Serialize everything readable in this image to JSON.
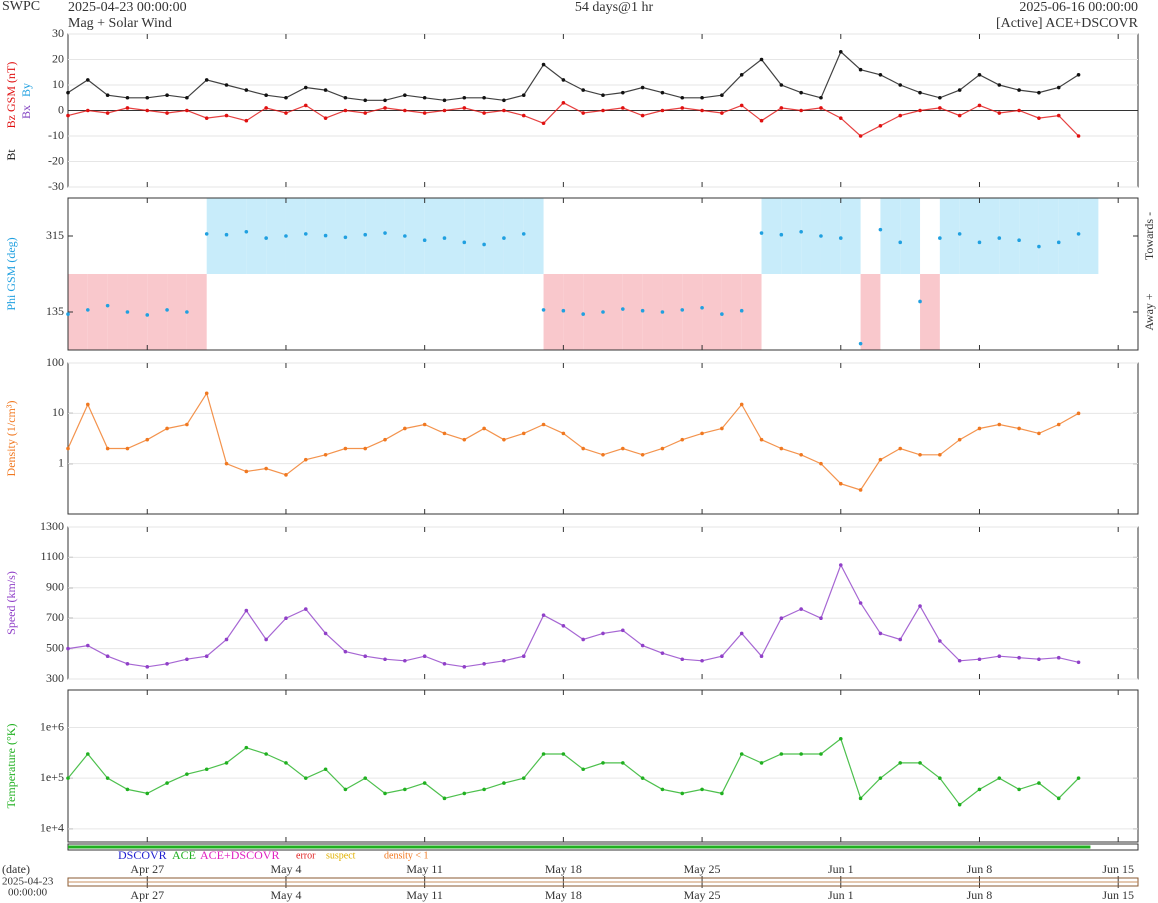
{
  "chart_data": [
    {
      "type": "line",
      "source": "SWPC",
      "start": "2025-04-23 00:00:00",
      "title": "Mag + Solar Wind",
      "span": "54 days@1 hr",
      "end": "2025-06-16 00:00:00",
      "status": "[Active] ACE+DSCOVR",
      "y_label_extra": [
        {
          "name": "Bx",
          "color": "#8040c0"
        },
        {
          "name": "By",
          "color": "#20a0e0"
        }
      ],
      "x": [
        "2025-04-23",
        "2025-04-24",
        "2025-04-25",
        "2025-04-26",
        "2025-04-27",
        "2025-04-28",
        "2025-04-29",
        "2025-04-30",
        "2025-05-01",
        "2025-05-02",
        "2025-05-03",
        "2025-05-04",
        "2025-05-05",
        "2025-05-06",
        "2025-05-07",
        "2025-05-08",
        "2025-05-09",
        "2025-05-10",
        "2025-05-11",
        "2025-05-12",
        "2025-05-13",
        "2025-05-14",
        "2025-05-15",
        "2025-05-16",
        "2025-05-17",
        "2025-05-18",
        "2025-05-19",
        "2025-05-20",
        "2025-05-21",
        "2025-05-22",
        "2025-05-23",
        "2025-05-24",
        "2025-05-25",
        "2025-05-26",
        "2025-05-27",
        "2025-05-28",
        "2025-05-29",
        "2025-05-30",
        "2025-05-31",
        "2025-06-01",
        "2025-06-02",
        "2025-06-03",
        "2025-06-04",
        "2025-06-05",
        "2025-06-06",
        "2025-06-07",
        "2025-06-08",
        "2025-06-09",
        "2025-06-10",
        "2025-06-11",
        "2025-06-12",
        "2025-06-13"
      ],
      "xlim": [
        "2025-04-23",
        "2025-06-16"
      ],
      "xticks": [
        {
          "value": "2025-04-27",
          "label": "Apr 27"
        },
        {
          "value": "2025-05-04",
          "label": "May 4"
        },
        {
          "value": "2025-05-11",
          "label": "May 11"
        },
        {
          "value": "2025-05-18",
          "label": "May 18"
        },
        {
          "value": "2025-05-25",
          "label": "May 25"
        },
        {
          "value": "2025-06-01",
          "label": "Jun 1"
        },
        {
          "value": "2025-06-08",
          "label": "Jun 8"
        },
        {
          "value": "2025-06-15",
          "label": "Jun 15"
        }
      ],
      "ylim": [
        -30,
        30
      ],
      "yticks": [
        -30,
        -20,
        -10,
        0,
        10,
        20,
        30
      ],
      "grid": true,
      "series": [
        {
          "name": "Bt",
          "color": "#111111",
          "values": [
            7,
            12,
            6,
            5,
            5,
            6,
            5,
            12,
            10,
            8,
            6,
            5,
            9,
            8,
            5,
            4,
            4,
            6,
            5,
            4,
            5,
            5,
            4,
            6,
            18,
            12,
            8,
            6,
            7,
            9,
            7,
            5,
            5,
            6,
            14,
            20,
            10,
            7,
            5,
            23,
            16,
            14,
            10,
            7,
            5,
            8,
            14,
            10,
            8,
            7,
            9,
            14
          ]
        },
        {
          "name": "Bz GSM (nT)",
          "color": "#e01010",
          "values": [
            -2,
            0,
            -1,
            1,
            0,
            -1,
            0,
            -3,
            -2,
            -4,
            1,
            -1,
            2,
            -3,
            0,
            -1,
            1,
            0,
            -1,
            0,
            1,
            -1,
            0,
            -2,
            -5,
            3,
            -1,
            0,
            1,
            -2,
            0,
            1,
            0,
            -1,
            2,
            -4,
            1,
            0,
            1,
            -3,
            -10,
            -6,
            -2,
            0,
            1,
            -2,
            2,
            -1,
            0,
            -3,
            -2,
            -10
          ]
        }
      ]
    },
    {
      "type": "scatter",
      "y_label": "Phi GSM (deg)",
      "sector_shading": true,
      "annotations": [
        "Towards -",
        "Away +"
      ],
      "x": [
        "2025-04-23",
        "2025-04-24",
        "2025-04-25",
        "2025-04-26",
        "2025-04-27",
        "2025-04-28",
        "2025-04-29",
        "2025-04-30",
        "2025-05-01",
        "2025-05-02",
        "2025-05-03",
        "2025-05-04",
        "2025-05-05",
        "2025-05-06",
        "2025-05-07",
        "2025-05-08",
        "2025-05-09",
        "2025-05-10",
        "2025-05-11",
        "2025-05-12",
        "2025-05-13",
        "2025-05-14",
        "2025-05-15",
        "2025-05-16",
        "2025-05-17",
        "2025-05-18",
        "2025-05-19",
        "2025-05-20",
        "2025-05-21",
        "2025-05-22",
        "2025-05-23",
        "2025-05-24",
        "2025-05-25",
        "2025-05-26",
        "2025-05-27",
        "2025-05-28",
        "2025-05-29",
        "2025-05-30",
        "2025-05-31",
        "2025-06-01",
        "2025-06-02",
        "2025-06-03",
        "2025-06-04",
        "2025-06-05",
        "2025-06-06",
        "2025-06-07",
        "2025-06-08",
        "2025-06-09",
        "2025-06-10",
        "2025-06-11",
        "2025-06-12",
        "2025-06-13"
      ],
      "xlim": [
        "2025-04-23",
        "2025-06-16"
      ],
      "xticks": [
        {
          "value": "2025-04-27",
          "label": "Apr 27"
        },
        {
          "value": "2025-05-04",
          "label": "May 4"
        },
        {
          "value": "2025-05-11",
          "label": "May 11"
        },
        {
          "value": "2025-05-18",
          "label": "May 18"
        },
        {
          "value": "2025-05-25",
          "label": "May 25"
        },
        {
          "value": "2025-06-01",
          "label": "Jun 1"
        },
        {
          "value": "2025-06-08",
          "label": "Jun 8"
        },
        {
          "value": "2025-06-15",
          "label": "Jun 15"
        }
      ],
      "ylim": [
        45,
        405
      ],
      "yticks": [
        135,
        315
      ],
      "grid": false,
      "series": [
        {
          "name": "Phi GSM (deg)",
          "color": "#20a0e0",
          "values": [
            130,
            140,
            150,
            135,
            128,
            140,
            135,
            320,
            318,
            325,
            310,
            315,
            320,
            316,
            312,
            318,
            322,
            315,
            305,
            310,
            300,
            295,
            310,
            320,
            140,
            138,
            130,
            135,
            142,
            138,
            135,
            140,
            145,
            130,
            138,
            322,
            318,
            325,
            315,
            310,
            60,
            330,
            300,
            160,
            310,
            320,
            300,
            310,
            305,
            290,
            300,
            320
          ]
        }
      ]
    },
    {
      "type": "line",
      "log_scale": true,
      "x": [
        "2025-04-23",
        "2025-04-24",
        "2025-04-25",
        "2025-04-26",
        "2025-04-27",
        "2025-04-28",
        "2025-04-29",
        "2025-04-30",
        "2025-05-01",
        "2025-05-02",
        "2025-05-03",
        "2025-05-04",
        "2025-05-05",
        "2025-05-06",
        "2025-05-07",
        "2025-05-08",
        "2025-05-09",
        "2025-05-10",
        "2025-05-11",
        "2025-05-12",
        "2025-05-13",
        "2025-05-14",
        "2025-05-15",
        "2025-05-16",
        "2025-05-17",
        "2025-05-18",
        "2025-05-19",
        "2025-05-20",
        "2025-05-21",
        "2025-05-22",
        "2025-05-23",
        "2025-05-24",
        "2025-05-25",
        "2025-05-26",
        "2025-05-27",
        "2025-05-28",
        "2025-05-29",
        "2025-05-30",
        "2025-05-31",
        "2025-06-01",
        "2025-06-02",
        "2025-06-03",
        "2025-06-04",
        "2025-06-05",
        "2025-06-06",
        "2025-06-07",
        "2025-06-08",
        "2025-06-09",
        "2025-06-10",
        "2025-06-11",
        "2025-06-12",
        "2025-06-13"
      ],
      "xlim": [
        "2025-04-23",
        "2025-06-16"
      ],
      "xticks": [
        {
          "value": "2025-04-27",
          "label": "Apr 27"
        },
        {
          "value": "2025-05-04",
          "label": "May 4"
        },
        {
          "value": "2025-05-11",
          "label": "May 11"
        },
        {
          "value": "2025-05-18",
          "label": "May 18"
        },
        {
          "value": "2025-05-25",
          "label": "May 25"
        },
        {
          "value": "2025-06-01",
          "label": "Jun 1"
        },
        {
          "value": "2025-06-08",
          "label": "Jun 8"
        },
        {
          "value": "2025-06-15",
          "label": "Jun 15"
        }
      ],
      "ylim": [
        0.1,
        100
      ],
      "yticks": [
        1,
        10,
        100
      ],
      "grid": true,
      "series": [
        {
          "name": "Density (1/cm³)",
          "color": "#f07820",
          "values": [
            2,
            15,
            2,
            2,
            3,
            5,
            6,
            25,
            1,
            0.7,
            0.8,
            0.6,
            1.2,
            1.5,
            2,
            2,
            3,
            5,
            6,
            4,
            3,
            5,
            3,
            4,
            6,
            4,
            2,
            1.5,
            2,
            1.5,
            2,
            3,
            4,
            5,
            15,
            3,
            2,
            1.5,
            1,
            0.4,
            0.3,
            1.2,
            2,
            1.5,
            1.5,
            3,
            5,
            6,
            5,
            4,
            6,
            10
          ]
        }
      ]
    },
    {
      "type": "line",
      "x": [
        "2025-04-23",
        "2025-04-24",
        "2025-04-25",
        "2025-04-26",
        "2025-04-27",
        "2025-04-28",
        "2025-04-29",
        "2025-04-30",
        "2025-05-01",
        "2025-05-02",
        "2025-05-03",
        "2025-05-04",
        "2025-05-05",
        "2025-05-06",
        "2025-05-07",
        "2025-05-08",
        "2025-05-09",
        "2025-05-10",
        "2025-05-11",
        "2025-05-12",
        "2025-05-13",
        "2025-05-14",
        "2025-05-15",
        "2025-05-16",
        "2025-05-17",
        "2025-05-18",
        "2025-05-19",
        "2025-05-20",
        "2025-05-21",
        "2025-05-22",
        "2025-05-23",
        "2025-05-24",
        "2025-05-25",
        "2025-05-26",
        "2025-05-27",
        "2025-05-28",
        "2025-05-29",
        "2025-05-30",
        "2025-05-31",
        "2025-06-01",
        "2025-06-02",
        "2025-06-03",
        "2025-06-04",
        "2025-06-05",
        "2025-06-06",
        "2025-06-07",
        "2025-06-08",
        "2025-06-09",
        "2025-06-10",
        "2025-06-11",
        "2025-06-12",
        "2025-06-13"
      ],
      "xlim": [
        "2025-04-23",
        "2025-06-16"
      ],
      "xticks": [
        {
          "value": "2025-04-27",
          "label": "Apr 27"
        },
        {
          "value": "2025-05-04",
          "label": "May 4"
        },
        {
          "value": "2025-05-11",
          "label": "May 11"
        },
        {
          "value": "2025-05-18",
          "label": "May 18"
        },
        {
          "value": "2025-05-25",
          "label": "May 25"
        },
        {
          "value": "2025-06-01",
          "label": "Jun 1"
        },
        {
          "value": "2025-06-08",
          "label": "Jun 8"
        },
        {
          "value": "2025-06-15",
          "label": "Jun 15"
        }
      ],
      "ylim": [
        300,
        1300
      ],
      "yticks": [
        300,
        500,
        700,
        900,
        1100,
        1300
      ],
      "grid": true,
      "series": [
        {
          "name": "Speed (km/s)",
          "color": "#9040c8",
          "values": [
            500,
            520,
            450,
            400,
            380,
            400,
            430,
            450,
            560,
            750,
            560,
            700,
            760,
            600,
            480,
            450,
            430,
            420,
            450,
            400,
            380,
            400,
            420,
            450,
            720,
            650,
            560,
            600,
            620,
            520,
            470,
            430,
            420,
            450,
            600,
            450,
            700,
            760,
            700,
            1050,
            800,
            600,
            560,
            780,
            550,
            420,
            430,
            450,
            440,
            430,
            440,
            410
          ]
        }
      ]
    },
    {
      "type": "line",
      "log_scale": true,
      "x_label": "(date)",
      "x_start_label": [
        "2025-04-23",
        "00:00:00"
      ],
      "source_legend": [
        {
          "name": "DSCOVR",
          "color": "#2020d0"
        },
        {
          "name": "ACE",
          "color": "#20b020"
        },
        {
          "name": "ACE+DSCOVR",
          "color": "#e020c0"
        },
        {
          "name": "error",
          "color": "#e02020"
        },
        {
          "name": "suspect",
          "color": "#e0b000"
        },
        {
          "name": "density < 1",
          "color": "#f07820"
        }
      ],
      "x": [
        "2025-04-23",
        "2025-04-24",
        "2025-04-25",
        "2025-04-26",
        "2025-04-27",
        "2025-04-28",
        "2025-04-29",
        "2025-04-30",
        "2025-05-01",
        "2025-05-02",
        "2025-05-03",
        "2025-05-04",
        "2025-05-05",
        "2025-05-06",
        "2025-05-07",
        "2025-05-08",
        "2025-05-09",
        "2025-05-10",
        "2025-05-11",
        "2025-05-12",
        "2025-05-13",
        "2025-05-14",
        "2025-05-15",
        "2025-05-16",
        "2025-05-17",
        "2025-05-18",
        "2025-05-19",
        "2025-05-20",
        "2025-05-21",
        "2025-05-22",
        "2025-05-23",
        "2025-05-24",
        "2025-05-25",
        "2025-05-26",
        "2025-05-27",
        "2025-05-28",
        "2025-05-29",
        "2025-05-30",
        "2025-05-31",
        "2025-06-01",
        "2025-06-02",
        "2025-06-03",
        "2025-06-04",
        "2025-06-05",
        "2025-06-06",
        "2025-06-07",
        "2025-06-08",
        "2025-06-09",
        "2025-06-10",
        "2025-06-11",
        "2025-06-12",
        "2025-06-13"
      ],
      "xlim": [
        "2025-04-23",
        "2025-06-16"
      ],
      "xticks": [
        {
          "value": "2025-04-27",
          "label": "Apr 27"
        },
        {
          "value": "2025-05-04",
          "label": "May 4"
        },
        {
          "value": "2025-05-11",
          "label": "May 11"
        },
        {
          "value": "2025-05-18",
          "label": "May 18"
        },
        {
          "value": "2025-05-25",
          "label": "May 25"
        },
        {
          "value": "2025-06-01",
          "label": "Jun 1"
        },
        {
          "value": "2025-06-08",
          "label": "Jun 8"
        },
        {
          "value": "2025-06-15",
          "label": "Jun 15"
        }
      ],
      "ylim": [
        5500,
        5500000
      ],
      "yticks": [
        {
          "value": 10000,
          "label": "1e+4"
        },
        {
          "value": 100000,
          "label": "1e+5"
        },
        {
          "value": 1000000,
          "label": "1e+6"
        }
      ],
      "grid": true,
      "series": [
        {
          "name": "Temperature (°K)",
          "color": "#20b020",
          "values": [
            100000,
            300000,
            100000,
            60000,
            50000,
            80000,
            120000,
            150000,
            200000,
            400000,
            300000,
            200000,
            100000,
            150000,
            60000,
            100000,
            50000,
            60000,
            80000,
            40000,
            50000,
            60000,
            80000,
            100000,
            300000,
            300000,
            150000,
            200000,
            200000,
            100000,
            60000,
            50000,
            60000,
            50000,
            300000,
            200000,
            300000,
            300000,
            300000,
            600000,
            40000,
            100000,
            200000,
            200000,
            100000,
            30000,
            60000,
            100000,
            60000,
            80000,
            40000,
            100000
          ]
        }
      ]
    }
  ]
}
